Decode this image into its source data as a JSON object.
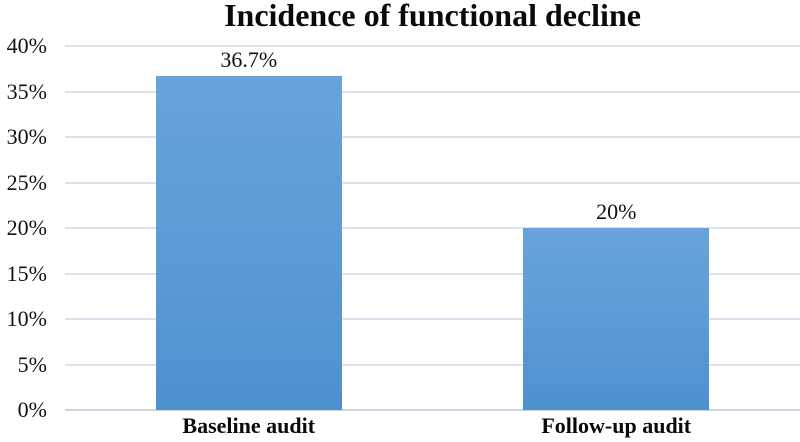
{
  "chart_data": {
    "type": "bar",
    "title": "Incidence of functional decline",
    "categories": [
      "Baseline audit",
      "Follow-up audit"
    ],
    "values": [
      36.7,
      20
    ],
    "data_labels": [
      "36.7%",
      "20%"
    ],
    "xlabel": "",
    "ylabel": "",
    "ylim": [
      0,
      40
    ],
    "ytick_step": 5,
    "ytick_labels": [
      "0%",
      "5%",
      "10%",
      "15%",
      "20%",
      "25%",
      "30%",
      "35%",
      "40%"
    ],
    "grid": true,
    "legend": false,
    "bar_color": "#5B9BD5",
    "gridline_color": "#DDE3EE",
    "axis_line_color": "#CCD5E3",
    "text_color": "#111111",
    "background": "#FFFFFF"
  }
}
